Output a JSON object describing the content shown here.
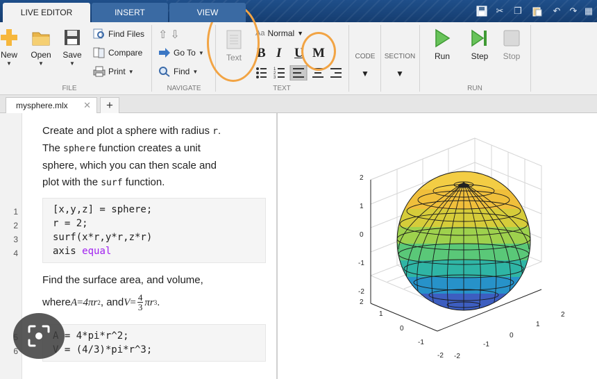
{
  "tabs": {
    "live_editor": "LIVE EDITOR",
    "insert": "INSERT",
    "view": "VIEW"
  },
  "ribbon": {
    "file": {
      "new": "New",
      "open": "Open",
      "save": "Save",
      "find_files": "Find Files",
      "compare": "Compare",
      "print": "Print",
      "label": "FILE"
    },
    "navigate": {
      "go_to": "Go To",
      "find": "Find",
      "label": "NAVIGATE"
    },
    "text": {
      "text_button": "Text",
      "style_select": "Normal",
      "bold": "B",
      "italic": "I",
      "underline": "U",
      "monospace": "M",
      "label": "TEXT"
    },
    "code": {
      "label": "CODE"
    },
    "section": {
      "label": "SECTION"
    },
    "run": {
      "run": "Run",
      "step": "Step",
      "stop": "Stop",
      "label": "RUN"
    }
  },
  "document_tab": {
    "name": "mysphere.mlx"
  },
  "editor": {
    "para1": {
      "line1_a": "Create and plot a sphere with radius ",
      "line1_code": "r",
      "line1_b": ".",
      "line2_a": "The ",
      "line2_code": "sphere",
      "line2_b": " function creates a unit",
      "line3": "sphere, which you can then scale and",
      "line4_a": "plot with the ",
      "line4_code": "surf",
      "line4_b": " function."
    },
    "code1": {
      "line_numbers": [
        "1",
        "2",
        "3",
        "4"
      ],
      "l1": "[x,y,z] = sphere;",
      "l2": "r = 2;",
      "l3": "surf(x*r,y*r,z*r)",
      "l4_a": "axis ",
      "l4_kw": "equal"
    },
    "para2": {
      "line1": "Find the surface area, and volume,",
      "where": "where ",
      "formula_a_lhs": "A",
      "eq": " = ",
      "formula_a_rhs": "4πr",
      "exp2": "2",
      "and": ", and ",
      "formula_v_lhs": "V",
      "frac_num": "4",
      "frac_den": "3",
      "formula_v_rhs": "πr",
      "exp3": "3",
      "period": "."
    },
    "code2": {
      "line_numbers": [
        "5",
        "6"
      ],
      "l5": "A = 4*pi*r^2;",
      "l6": "V = (4/3)*pi*r^3;"
    }
  },
  "plot": {
    "z_ticks": [
      "2",
      "1",
      "0",
      "-1",
      "-2"
    ],
    "x_ticks": [
      "2",
      "1",
      "0",
      "-1",
      "-2"
    ],
    "y_ticks": [
      "-2",
      "-1",
      "0",
      "1",
      "2"
    ],
    "colormap": [
      "#3b4cc0",
      "#2a88c8",
      "#1fb8a0",
      "#5fd068",
      "#c9d936",
      "#f5c93a",
      "#f0b43a"
    ]
  }
}
